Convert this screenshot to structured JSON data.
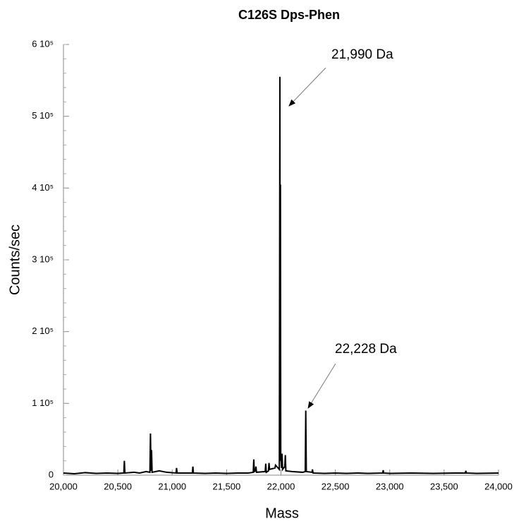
{
  "chart_data": {
    "type": "line",
    "title": "C126S Dps-Phen",
    "xlabel": "Mass",
    "ylabel": "Counts/sec",
    "x": [
      20000,
      20100,
      20200,
      20300,
      20400,
      20500,
      20555,
      20560,
      20565,
      20650,
      20700,
      20760,
      20795,
      20800,
      20805,
      20810,
      20815,
      20880,
      20950,
      21035,
      21040,
      21045,
      21185,
      21190,
      21195,
      21300,
      21400,
      21500,
      21600,
      21700,
      21745,
      21750,
      21755,
      21765,
      21770,
      21775,
      21855,
      21860,
      21865,
      21885,
      21890,
      21895,
      21945,
      21950,
      21985,
      21990,
      21993,
      21995,
      21998,
      22005,
      22010,
      22015,
      22035,
      22040,
      22045,
      22100,
      22200,
      22223,
      22228,
      22233,
      22285,
      22290,
      22295,
      22400,
      22500,
      22600,
      22700,
      22800,
      22935,
      22940,
      22945,
      23000,
      23200,
      23400,
      23600,
      23695,
      23700,
      23705,
      23800,
      24000
    ],
    "series": [
      {
        "name": "C126S Dps-Phen",
        "color": "#000000",
        "values": [
          3000,
          2000,
          3500,
          2500,
          3000,
          2500,
          3000,
          20000,
          3000,
          4000,
          3000,
          5000,
          4000,
          58000,
          6000,
          35000,
          4000,
          6000,
          4000,
          3000,
          10000,
          3000,
          3000,
          12000,
          3000,
          2500,
          3000,
          2500,
          3000,
          3000,
          4000,
          22000,
          5000,
          6000,
          12000,
          4000,
          5000,
          16000,
          4000,
          6000,
          17000,
          8000,
          10000,
          14000,
          8000,
          555000,
          20000,
          405000,
          30000,
          10000,
          30000,
          8000,
          12000,
          28000,
          6000,
          5000,
          4000,
          5000,
          90000,
          5000,
          4000,
          8000,
          3000,
          2500,
          3000,
          2500,
          3000,
          2500,
          3000,
          7000,
          3000,
          2500,
          3000,
          2500,
          3000,
          3000,
          6000,
          3000,
          2500,
          3000
        ]
      }
    ],
    "xlim": [
      20000,
      24000
    ],
    "xticks": [
      {
        "value": 20000,
        "label": "20,000"
      },
      {
        "value": 20500,
        "label": "20,500"
      },
      {
        "value": 21000,
        "label": "21,000"
      },
      {
        "value": 21500,
        "label": "21,500"
      },
      {
        "value": 22000,
        "label": "22,000"
      },
      {
        "value": 22500,
        "label": "22,500"
      },
      {
        "value": 23000,
        "label": "23,000"
      },
      {
        "value": 23500,
        "label": "23,500"
      },
      {
        "value": 24000,
        "label": "24,000"
      }
    ],
    "ylim": [
      0,
      600000
    ],
    "yticks": [
      0,
      {
        "value": 100000,
        "label": "1 10⁵"
      },
      {
        "value": 200000,
        "label": "2 10⁵"
      },
      {
        "value": 300000,
        "label": "3 10⁵"
      },
      {
        "value": 400000,
        "label": "4 10⁵"
      },
      {
        "value": 500000,
        "label": "5 10⁵"
      },
      {
        "value": 600000,
        "label": "6 10⁵"
      }
    ],
    "annotations": [
      "21,990 Da",
      "22,228 Da"
    ]
  }
}
